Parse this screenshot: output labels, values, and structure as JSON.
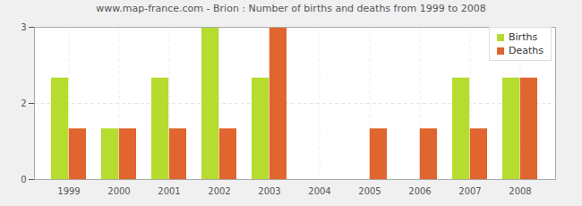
{
  "chart_data": {
    "type": "bar",
    "title": "www.map-france.com - Brion : Number of births and deaths from 1999 to 2008",
    "categories": [
      "1999",
      "2000",
      "2001",
      "2002",
      "2003",
      "2004",
      "2005",
      "2006",
      "2007",
      "2008"
    ],
    "series": [
      {
        "name": "Births",
        "color": "#b5dc2f",
        "values": [
          2,
          1,
          2,
          3,
          2,
          0,
          0,
          0,
          2,
          2
        ]
      },
      {
        "name": "Deaths",
        "color": "#e0652e",
        "values": [
          1,
          1,
          1,
          1,
          3,
          0,
          1,
          1,
          1,
          2
        ]
      }
    ],
    "ylim": [
      0,
      3
    ],
    "yticks": [
      {
        "value": 0,
        "label": "0"
      },
      {
        "value": 1.5,
        "label": "2"
      },
      {
        "value": 3,
        "label": "3"
      }
    ],
    "grid": true,
    "legend": "top-right"
  }
}
